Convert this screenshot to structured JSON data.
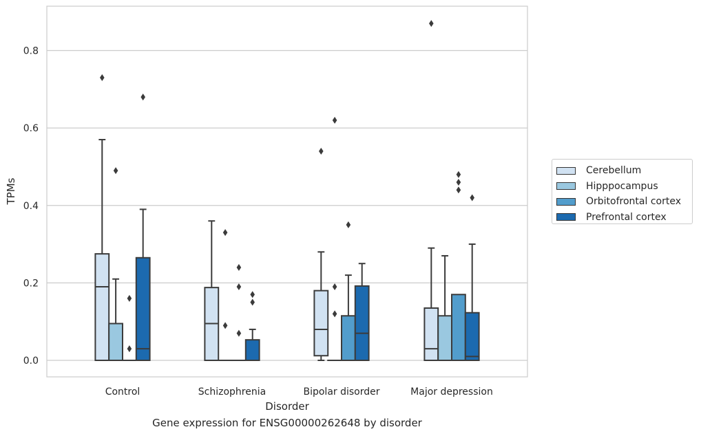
{
  "chart_data": {
    "type": "box",
    "xlabel": "Disorder",
    "ylabel": "TPMs",
    "ylim": [
      -0.04,
      0.92
    ],
    "yticks": [
      0.0,
      0.2,
      0.4,
      0.6,
      0.8
    ],
    "ytick_labels": [
      "0.0",
      "0.2",
      "0.4",
      "0.6",
      "0.8"
    ],
    "grid": "horizontal",
    "legend_position": "right",
    "categories": [
      "Control",
      "Schizophrenia",
      "Bipolar disorder",
      "Major depression"
    ],
    "series": [
      {
        "name": "Cerebellum",
        "color": "#d1e2f2",
        "boxes": [
          {
            "min": 0.0,
            "q1": 0.0,
            "median": 0.19,
            "q3": 0.275,
            "max": 0.57,
            "outliers": [
              0.73
            ]
          },
          {
            "min": 0.0,
            "q1": 0.0,
            "median": 0.095,
            "q3": 0.188,
            "max": 0.36,
            "outliers": []
          },
          {
            "min": 0.0,
            "q1": 0.012,
            "median": 0.08,
            "q3": 0.18,
            "max": 0.28,
            "outliers": [
              0.54
            ]
          },
          {
            "min": 0.0,
            "q1": 0.0,
            "median": 0.03,
            "q3": 0.135,
            "max": 0.29,
            "outliers": [
              0.87
            ]
          }
        ]
      },
      {
        "name": "Hipppocampus",
        "color": "#9ac8e0",
        "boxes": [
          {
            "min": 0.0,
            "q1": 0.0,
            "median": 0.0,
            "q3": 0.095,
            "max": 0.21,
            "outliers": [
              0.49
            ]
          },
          {
            "min": 0.0,
            "q1": 0.0,
            "median": 0.0,
            "q3": 0.0,
            "max": 0.0,
            "outliers": [
              0.09,
              0.33
            ]
          },
          {
            "min": 0.0,
            "q1": 0.0,
            "median": 0.0,
            "q3": 0.0,
            "max": 0.0,
            "outliers": [
              0.12,
              0.19,
              0.62
            ]
          },
          {
            "min": 0.0,
            "q1": 0.0,
            "median": 0.0,
            "q3": 0.115,
            "max": 0.27,
            "outliers": []
          }
        ]
      },
      {
        "name": "Orbitofrontal cortex",
        "color": "#529dcc",
        "boxes": [
          {
            "min": 0.0,
            "q1": 0.0,
            "median": 0.0,
            "q3": 0.0,
            "max": 0.0,
            "outliers": [
              0.03,
              0.16
            ]
          },
          {
            "min": 0.0,
            "q1": 0.0,
            "median": 0.0,
            "q3": 0.0,
            "max": 0.0,
            "outliers": [
              0.07,
              0.19,
              0.24
            ]
          },
          {
            "min": 0.0,
            "q1": 0.0,
            "median": 0.0,
            "q3": 0.115,
            "max": 0.22,
            "outliers": [
              0.35
            ]
          },
          {
            "min": 0.0,
            "q1": 0.0,
            "median": 0.0,
            "q3": 0.17,
            "max": 0.17,
            "outliers": [
              0.44,
              0.46,
              0.48
            ]
          }
        ]
      },
      {
        "name": "Prefrontal cortex",
        "color": "#1c6aaf",
        "boxes": [
          {
            "min": 0.0,
            "q1": 0.0,
            "median": 0.03,
            "q3": 0.265,
            "max": 0.39,
            "outliers": [
              0.68
            ]
          },
          {
            "min": 0.0,
            "q1": 0.0,
            "median": 0.0,
            "q3": 0.053,
            "max": 0.08,
            "outliers": [
              0.15,
              0.17
            ]
          },
          {
            "min": 0.0,
            "q1": 0.0,
            "median": 0.07,
            "q3": 0.192,
            "max": 0.25,
            "outliers": []
          },
          {
            "min": 0.0,
            "q1": 0.0,
            "median": 0.01,
            "q3": 0.123,
            "max": 0.3,
            "outliers": [
              0.42
            ]
          }
        ]
      }
    ],
    "caption": "Gene expression for ENSG00000262648 by disorder"
  }
}
